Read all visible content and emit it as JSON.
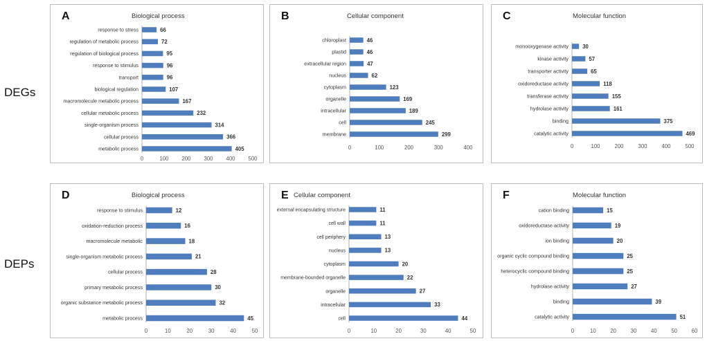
{
  "row_labels": [
    "DEGs",
    "DEPs"
  ],
  "chart_data": [
    {
      "letter": "A",
      "type": "bar",
      "orientation": "horizontal",
      "title": "Biological process",
      "categories": [
        "response to stress",
        "regulation of metabolic process",
        "regulation of biological process",
        "response to stimulus",
        "transport",
        "biological regulation",
        "macromolecule metabolic process",
        "cellular metabolic process",
        "single-organism process",
        "cellular process",
        "metabolic process"
      ],
      "values": [
        66,
        72,
        95,
        96,
        96,
        107,
        167,
        232,
        314,
        366,
        405
      ],
      "xlim": [
        0,
        500
      ],
      "ticks": [
        0,
        100,
        200,
        300,
        400,
        500
      ],
      "color": "#4f7dbd"
    },
    {
      "letter": "B",
      "type": "bar",
      "orientation": "horizontal",
      "title": "Cellular component",
      "categories": [
        "chloroplast",
        "plastid",
        "extracellular region",
        "nucleus",
        "cytoplasm",
        "organelle",
        "intracellular",
        "cell",
        "membrane"
      ],
      "values": [
        46,
        46,
        47,
        62,
        123,
        169,
        189,
        245,
        299
      ],
      "xlim": [
        0,
        400
      ],
      "ticks": [
        0,
        100,
        200,
        300,
        400
      ],
      "color": "#4f7dbd"
    },
    {
      "letter": "C",
      "type": "bar",
      "orientation": "horizontal",
      "title": "Molecular function",
      "categories": [
        "monooxygenase activity",
        "kinase activity",
        "transporter activity",
        "oxidoreductase activity",
        "transferase activity",
        "hydrolase activity",
        "binding",
        "catalytic activity"
      ],
      "values": [
        30,
        57,
        65,
        118,
        155,
        161,
        375,
        469
      ],
      "xlim": [
        0,
        500
      ],
      "ticks": [
        0,
        100,
        200,
        300,
        400,
        500
      ],
      "color": "#4f7dbd"
    },
    {
      "letter": "D",
      "type": "bar",
      "orientation": "horizontal",
      "title": "Biological process",
      "categories": [
        "response to stimulus",
        "oxidation-reduction process",
        "macromolecule metabolic",
        "single-organism metabolic process",
        "cellular process",
        "primary metabolic process",
        "organic substance metabolic process",
        "metabolic process"
      ],
      "values": [
        12,
        16,
        18,
        21,
        28,
        30,
        32,
        45
      ],
      "xlim": [
        0,
        50
      ],
      "ticks": [
        0,
        10,
        20,
        30,
        40,
        50
      ],
      "color": "#4f7dbd"
    },
    {
      "letter": "E",
      "type": "bar",
      "orientation": "horizontal",
      "title": "Cellular component",
      "categories": [
        "external encapsulating structure",
        "cell wall",
        "cell periphery",
        "nucleus",
        "cytoplasm",
        "membrane-bounded organelle",
        "organelle",
        "intracellular",
        "cell"
      ],
      "values": [
        11,
        11,
        13,
        13,
        20,
        22,
        27,
        33,
        44
      ],
      "xlim": [
        0,
        50
      ],
      "ticks": [
        0,
        10,
        20,
        30,
        40,
        50
      ],
      "color": "#4f7dbd"
    },
    {
      "letter": "F",
      "type": "bar",
      "orientation": "horizontal",
      "title": "Molecular function",
      "categories": [
        "cation binding",
        "oxidoreductase activity",
        "ion binding",
        "organic cyclic compound binding",
        "heterocyclic compound binding",
        "hydrolase activity",
        "binding",
        "catalytic activity"
      ],
      "values": [
        15,
        19,
        20,
        25,
        25,
        27,
        39,
        51
      ],
      "xlim": [
        0,
        60
      ],
      "ticks": [
        0,
        10,
        20,
        30,
        40,
        50,
        60
      ],
      "color": "#4f7dbd"
    }
  ]
}
